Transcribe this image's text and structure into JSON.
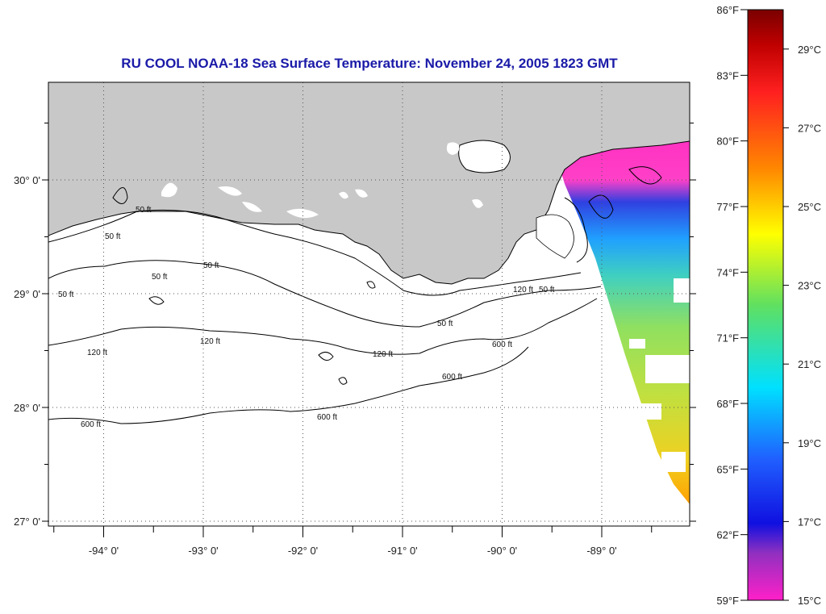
{
  "title": "RU COOL  NOAA-18  Sea Surface Temperature:  November 24, 2005 1823 GMT",
  "lon_ticks": [
    {
      "label": "-94° 0'",
      "lon": -94
    },
    {
      "label": "-93° 0'",
      "lon": -93
    },
    {
      "label": "-92° 0'",
      "lon": -92
    },
    {
      "label": "-91° 0'",
      "lon": -91
    },
    {
      "label": "-90° 0'",
      "lon": -90
    },
    {
      "label": "-89° 0'",
      "lon": -89
    }
  ],
  "lat_ticks": [
    {
      "label": "30° 0'",
      "lat": 30
    },
    {
      "label": "29° 0'",
      "lat": 29
    },
    {
      "label": "28° 0'",
      "lat": 28
    },
    {
      "label": "27° 0'",
      "lat": 27
    }
  ],
  "depth_contour_labels": [
    "50 ft",
    "120 ft",
    "600 ft"
  ],
  "colorbar": {
    "fahrenheit": [
      "86°F",
      "83°F",
      "80°F",
      "77°F",
      "74°F",
      "71°F",
      "68°F",
      "65°F",
      "62°F",
      "59°F"
    ],
    "celsius": [
      "29°C",
      "27°C",
      "25°C",
      "23°C",
      "21°C",
      "19°C",
      "17°C",
      "15°C"
    ],
    "colors": {
      "top": "#8b0000",
      "red": "#ff2020",
      "orange": "#ff8800",
      "yellow": "#ffff00",
      "green": "#60e060",
      "cyan": "#00e0ff",
      "blue": "#2060ff",
      "deepblue": "#1010e0",
      "purple": "#9030c0",
      "magenta": "#ff20c8"
    }
  },
  "colors": {
    "land": "#c8c8c8",
    "water": "#ffffff",
    "cloud_patch": "#ffffff",
    "title": "#1a1aa8"
  }
}
